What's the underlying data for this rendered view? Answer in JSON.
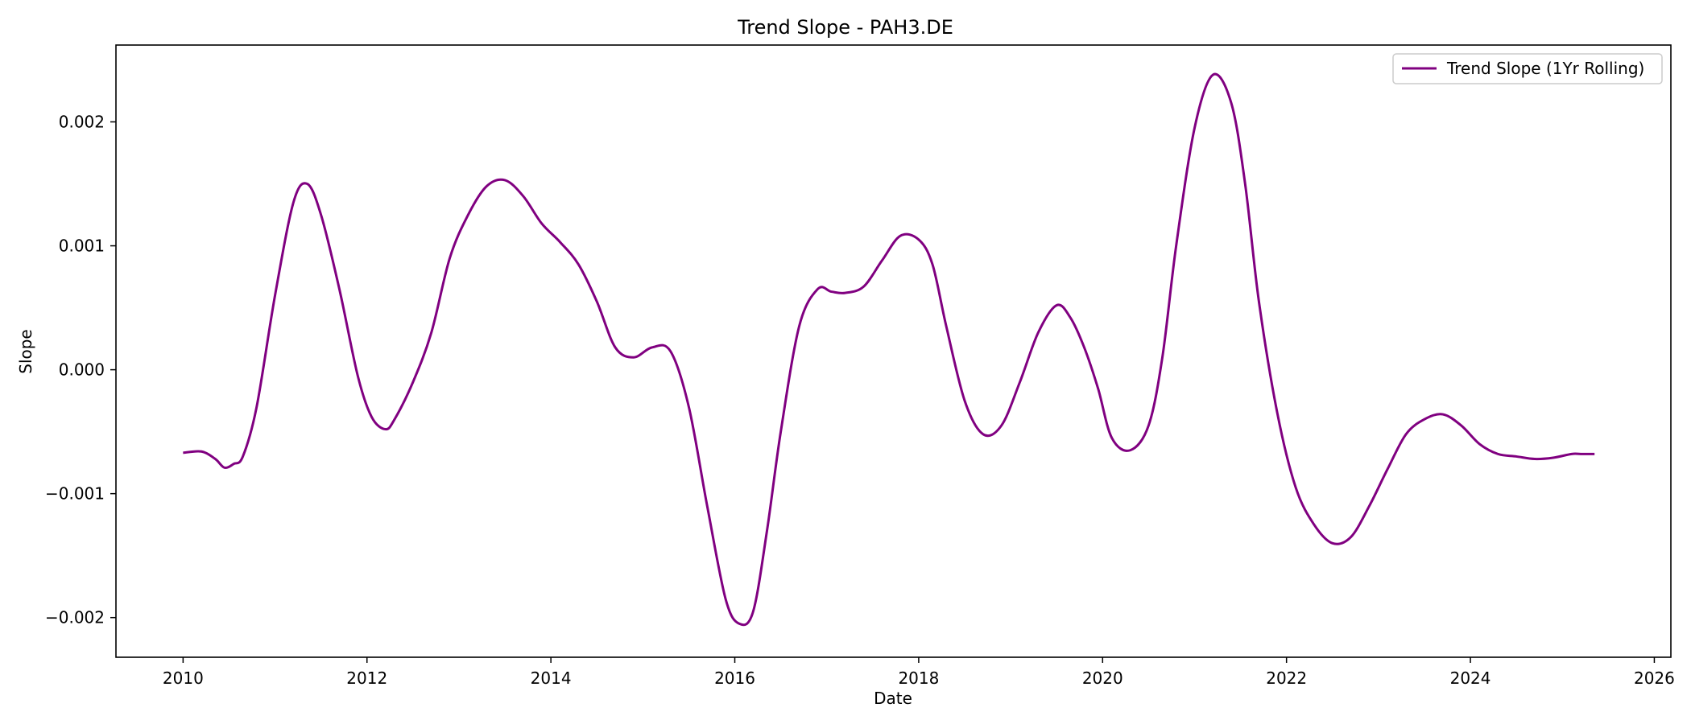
{
  "chart_data": {
    "type": "line",
    "title": "Trend Slope - PAH3.DE",
    "xlabel": "Date",
    "ylabel": "Slope",
    "xlim": [
      2009.27,
      2026.18
    ],
    "ylim": [
      -0.00232,
      0.00262
    ],
    "x_ticks": [
      2010,
      2012,
      2014,
      2016,
      2018,
      2020,
      2022,
      2024,
      2026
    ],
    "y_ticks": [
      -0.002,
      -0.001,
      0.0,
      0.001,
      0.002
    ],
    "y_tick_labels": [
      "−0.002",
      "−0.001",
      "0.000",
      "0.001",
      "0.002"
    ],
    "grid": false,
    "legend_position": "top-right",
    "series": [
      {
        "name": "Trend Slope (1Yr Rolling)",
        "color": "#800080",
        "x": [
          2010.0,
          2010.2,
          2010.35,
          2010.45,
          2010.55,
          2010.65,
          2010.8,
          2011.0,
          2011.2,
          2011.35,
          2011.5,
          2011.7,
          2011.9,
          2012.05,
          2012.2,
          2012.3,
          2012.5,
          2012.7,
          2012.9,
          2013.1,
          2013.3,
          2013.5,
          2013.7,
          2013.9,
          2014.1,
          2014.3,
          2014.5,
          2014.7,
          2014.9,
          2015.1,
          2015.3,
          2015.5,
          2015.7,
          2015.9,
          2016.05,
          2016.2,
          2016.35,
          2016.5,
          2016.7,
          2016.9,
          2017.05,
          2017.2,
          2017.4,
          2017.6,
          2017.8,
          2018.0,
          2018.15,
          2018.3,
          2018.5,
          2018.7,
          2018.9,
          2019.1,
          2019.3,
          2019.5,
          2019.65,
          2019.8,
          2019.95,
          2020.1,
          2020.3,
          2020.5,
          2020.65,
          2020.8,
          2021.0,
          2021.2,
          2021.4,
          2021.55,
          2021.7,
          2021.9,
          2022.1,
          2022.3,
          2022.5,
          2022.7,
          2022.9,
          2023.1,
          2023.3,
          2023.5,
          2023.7,
          2023.9,
          2024.1,
          2024.3,
          2024.5,
          2024.7,
          2024.9,
          2025.1,
          2025.2,
          2025.35
        ],
        "y": [
          -0.00067,
          -0.00066,
          -0.00072,
          -0.00079,
          -0.00076,
          -0.0007,
          -0.0003,
          0.0006,
          0.00135,
          0.0015,
          0.00125,
          0.00065,
          -5e-05,
          -0.00038,
          -0.00048,
          -0.0004,
          -0.0001,
          0.0003,
          0.0009,
          0.00125,
          0.00148,
          0.00153,
          0.0014,
          0.00118,
          0.00103,
          0.00085,
          0.00055,
          0.00018,
          0.0001,
          0.00018,
          0.00015,
          -0.0003,
          -0.0011,
          -0.00185,
          -0.00205,
          -0.00195,
          -0.0013,
          -0.0005,
          0.00035,
          0.00065,
          0.00063,
          0.00062,
          0.00067,
          0.00088,
          0.00108,
          0.00105,
          0.00085,
          0.00035,
          -0.00025,
          -0.00052,
          -0.00045,
          -0.0001,
          0.0003,
          0.00052,
          0.00042,
          0.00018,
          -0.00015,
          -0.00055,
          -0.00065,
          -0.00045,
          0.0001,
          0.001,
          0.00195,
          0.00238,
          0.00215,
          0.0015,
          0.00055,
          -0.00035,
          -0.00095,
          -0.00125,
          -0.0014,
          -0.00135,
          -0.0011,
          -0.0008,
          -0.00052,
          -0.0004,
          -0.00036,
          -0.00045,
          -0.0006,
          -0.00068,
          -0.0007,
          -0.00072,
          -0.00071,
          -0.00068,
          -0.00068,
          -0.00068
        ]
      }
    ]
  }
}
